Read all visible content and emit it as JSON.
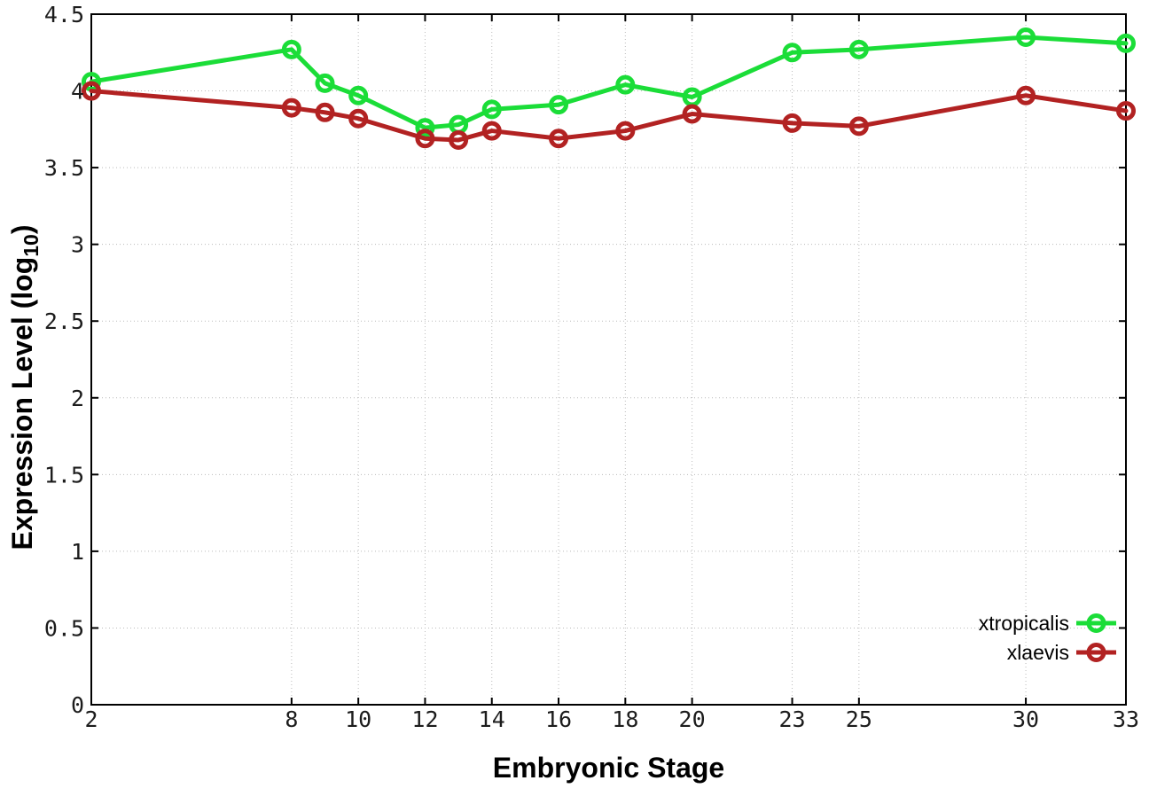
{
  "chart_data": {
    "type": "line",
    "title": "",
    "xlabel": "Embryonic Stage",
    "ylabel": "Expression Level (log10)",
    "ylabel_parts": {
      "prefix": "Expression Level (log",
      "sub": "10",
      "suffix": ")"
    },
    "x": [
      2,
      8,
      9,
      10,
      12,
      13,
      14,
      16,
      18,
      20,
      23,
      25,
      30,
      33
    ],
    "series": [
      {
        "name": "xtropicalis",
        "color": "#1bdd38",
        "values": [
          4.06,
          4.27,
          4.05,
          3.97,
          3.76,
          3.78,
          3.88,
          3.91,
          4.04,
          3.96,
          4.25,
          4.27,
          4.35,
          4.31
        ]
      },
      {
        "name": "xlaevis",
        "color": "#b22222",
        "values": [
          4.0,
          3.89,
          3.86,
          3.82,
          3.69,
          3.68,
          3.74,
          3.69,
          3.74,
          3.85,
          3.79,
          3.77,
          3.97,
          3.87
        ]
      }
    ],
    "xlim": [
      2,
      33
    ],
    "ylim": [
      0,
      4.5
    ],
    "xticks": [
      2,
      8,
      10,
      12,
      14,
      16,
      18,
      20,
      23,
      25,
      30,
      33
    ],
    "yticks": [
      0,
      0.5,
      1,
      1.5,
      2,
      2.5,
      3,
      3.5,
      4,
      4.5
    ],
    "grid": true,
    "legend_position": "inside-bottom-right",
    "legend_entries": [
      "xtropicalis",
      "xlaevis"
    ]
  },
  "colors": {
    "background": "#ffffff",
    "border": "#000000",
    "grid": "#bbbbbb",
    "tick_text": "#1c1c1c",
    "series_green": "#1bdd38",
    "series_red": "#b22222"
  }
}
